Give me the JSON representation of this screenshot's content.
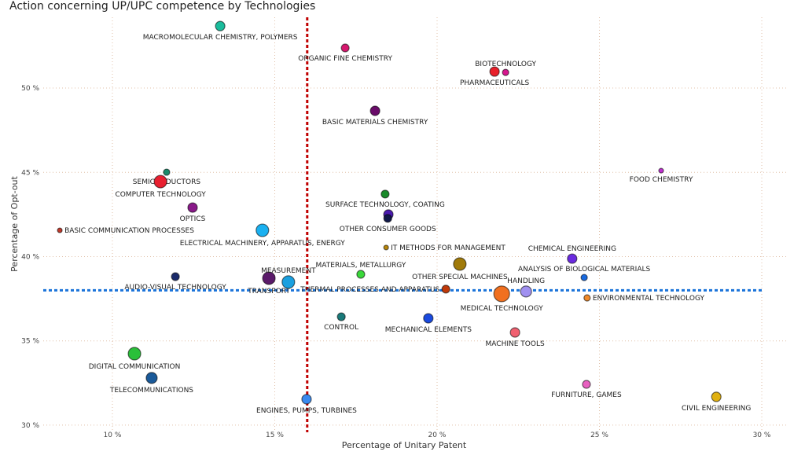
{
  "chart_data": {
    "type": "scatter",
    "title": "Action concerning UP/UPC competence by Technologies",
    "xlabel": "Percentage of Unitary Patent",
    "ylabel": "Percentage of Opt-out",
    "xlim": [
      7.87,
      30.75
    ],
    "ylim": [
      29.67,
      54.2
    ],
    "x_ticks": [
      10,
      15,
      20,
      25,
      30
    ],
    "x_tick_labels": [
      "10 %",
      "15 %",
      "20 %",
      "25 %",
      "30 %"
    ],
    "y_ticks": [
      30,
      35,
      40,
      45,
      50
    ],
    "y_tick_labels": [
      "30 %",
      "35 %",
      "40 %",
      "45 %",
      "50 %"
    ],
    "grid": true,
    "reference_lines": {
      "x": 16.0,
      "y": 38.0,
      "x_color": "#c00000",
      "y_color": "#1a73d9"
    },
    "points": [
      {
        "label": "MACROMOLECULAR CHEMISTRY, POLYMERS",
        "x": 13.32,
        "y": 53.68,
        "color": "#1abc9c",
        "size": 6
      },
      {
        "label": "ORGANIC FINE CHEMISTRY",
        "x": 17.17,
        "y": 52.38,
        "color": "#d6186e",
        "size": 5
      },
      {
        "label": "BIOTECHNOLOGY",
        "x": 22.11,
        "y": 50.93,
        "color": "#d6168e",
        "size": 4
      },
      {
        "label": "PHARMACEUTICALS",
        "x": 21.77,
        "y": 50.98,
        "color": "#e8202a",
        "size": 6
      },
      {
        "label": "BASIC MATERIALS CHEMISTRY",
        "x": 18.09,
        "y": 48.65,
        "color": "#6a0c6a",
        "size": 6
      },
      {
        "label": "FOOD CHEMISTRY",
        "x": 26.9,
        "y": 45.1,
        "color": "#c030d0",
        "size": 3
      },
      {
        "label": "SEMICONDUCTORS",
        "x": 11.67,
        "y": 45.01,
        "color": "#1a8a6a",
        "size": 4
      },
      {
        "label": "COMPUTER TECHNOLOGY",
        "x": 11.48,
        "y": 44.45,
        "color": "#e82030",
        "size": 8
      },
      {
        "label": "SURFACE TECHNOLOGY, COATING",
        "x": 18.4,
        "y": 43.71,
        "color": "#1a8a2a",
        "size": 5
      },
      {
        "label": "OPTICS",
        "x": 12.47,
        "y": 42.91,
        "color": "#8a1a8a",
        "size": 6
      },
      {
        "label": "",
        "x": 18.5,
        "y": 42.5,
        "color": "#4a1ab0",
        "size": 6
      },
      {
        "label": "OTHER CONSUMER GOODS",
        "x": 18.48,
        "y": 42.27,
        "color": "#101848",
        "size": 5
      },
      {
        "label": "BASIC COMMUNICATION PROCESSES",
        "x": 8.38,
        "y": 41.56,
        "color": "#c0392b",
        "size": 3
      },
      {
        "label": "ELECTRICAL MACHINERY, APPARATUS, ENERGY",
        "x": 14.62,
        "y": 41.56,
        "color": "#1ab0f0",
        "size": 8
      },
      {
        "label": "IT METHODS FOR MANAGEMENT",
        "x": 18.43,
        "y": 40.54,
        "color": "#b8860b",
        "size": 3
      },
      {
        "label": "CHEMICAL ENGINEERING",
        "x": 24.16,
        "y": 39.88,
        "color": "#6a2adf",
        "size": 6
      },
      {
        "label": "OTHER SPECIAL MACHINES",
        "x": 20.7,
        "y": 39.56,
        "color": "#a07a0a",
        "size": 8
      },
      {
        "label": "MATERIALS, METALLURGY",
        "x": 17.65,
        "y": 38.95,
        "color": "#3ad83a",
        "size": 5
      },
      {
        "label": "ANALYSIS OF BIOLOGICAL MATERIALS",
        "x": 24.53,
        "y": 38.76,
        "color": "#1a6adf",
        "size": 4
      },
      {
        "label": "AUDIO-VISUAL TECHNOLOGY",
        "x": 11.94,
        "y": 38.81,
        "color": "#1a2a6a",
        "size": 5
      },
      {
        "label": "TRANSPORT",
        "x": 14.82,
        "y": 38.72,
        "color": "#5a1a6a",
        "size": 8
      },
      {
        "label": "MEASUREMENT",
        "x": 15.42,
        "y": 38.49,
        "color": "#1aa0e0",
        "size": 8
      },
      {
        "label": "THERMAL PROCESSES AND APPARATUS",
        "x": 20.27,
        "y": 38.07,
        "color": "#c03a0a",
        "size": 5
      },
      {
        "label": "MEDICAL TECHNOLOGY",
        "x": 21.99,
        "y": 37.79,
        "color": "#f07020",
        "size": 10
      },
      {
        "label": "HANDLING",
        "x": 22.74,
        "y": 37.93,
        "color": "#a090f0",
        "size": 7
      },
      {
        "label": "ENVIRONMENTAL TECHNOLOGY",
        "x": 24.62,
        "y": 37.55,
        "color": "#f08a2a",
        "size": 4
      },
      {
        "label": "CONTROL",
        "x": 17.05,
        "y": 36.43,
        "color": "#1a7a7a",
        "size": 5
      },
      {
        "label": "MECHANICAL ELEMENTS",
        "x": 19.73,
        "y": 36.34,
        "color": "#1a4adf",
        "size": 6
      },
      {
        "label": "MACHINE TOOLS",
        "x": 22.4,
        "y": 35.5,
        "color": "#f06070",
        "size": 6
      },
      {
        "label": "DIGITAL COMMUNICATION",
        "x": 10.68,
        "y": 34.24,
        "color": "#2ac03a",
        "size": 8
      },
      {
        "label": "TELECOMMUNICATIONS",
        "x": 11.21,
        "y": 32.8,
        "color": "#1a5a9a",
        "size": 7
      },
      {
        "label": "FURNITURE, GAMES",
        "x": 24.6,
        "y": 32.42,
        "color": "#e860c0",
        "size": 5
      },
      {
        "label": "ENGINES, PUMPS, TURBINES",
        "x": 15.98,
        "y": 31.54,
        "color": "#3a8aef",
        "size": 6
      },
      {
        "label": "CIVIL ENGINEERING",
        "x": 28.6,
        "y": 31.68,
        "color": "#e0b010",
        "size": 6
      }
    ]
  }
}
